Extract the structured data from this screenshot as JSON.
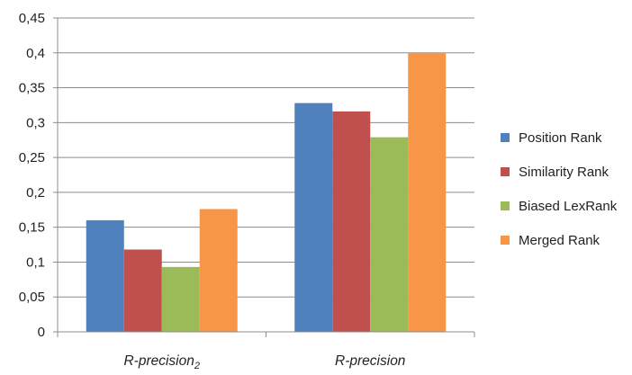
{
  "chart_data": {
    "type": "bar",
    "categories": [
      "R-precision₂",
      "R-precision"
    ],
    "series": [
      {
        "name": "Position Rank",
        "color": "#4f81bd",
        "values": [
          0.16,
          0.328
        ]
      },
      {
        "name": "Similarity Rank",
        "color": "#c0504d",
        "values": [
          0.118,
          0.316
        ]
      },
      {
        "name": "Biased LexRank",
        "color": "#9bbb59",
        "values": [
          0.093,
          0.279
        ]
      },
      {
        "name": "Merged Rank",
        "color": "#f79646",
        "values": [
          0.176,
          0.4
        ]
      }
    ],
    "yticks": [
      "0",
      "0,05",
      "0,1",
      "0,15",
      "0,2",
      "0,25",
      "0,3",
      "0,35",
      "0,4",
      "0,45"
    ],
    "ylim": [
      0,
      0.45
    ],
    "grid": true,
    "legend_position": "right",
    "title": "",
    "xlabel": "",
    "ylabel": ""
  }
}
